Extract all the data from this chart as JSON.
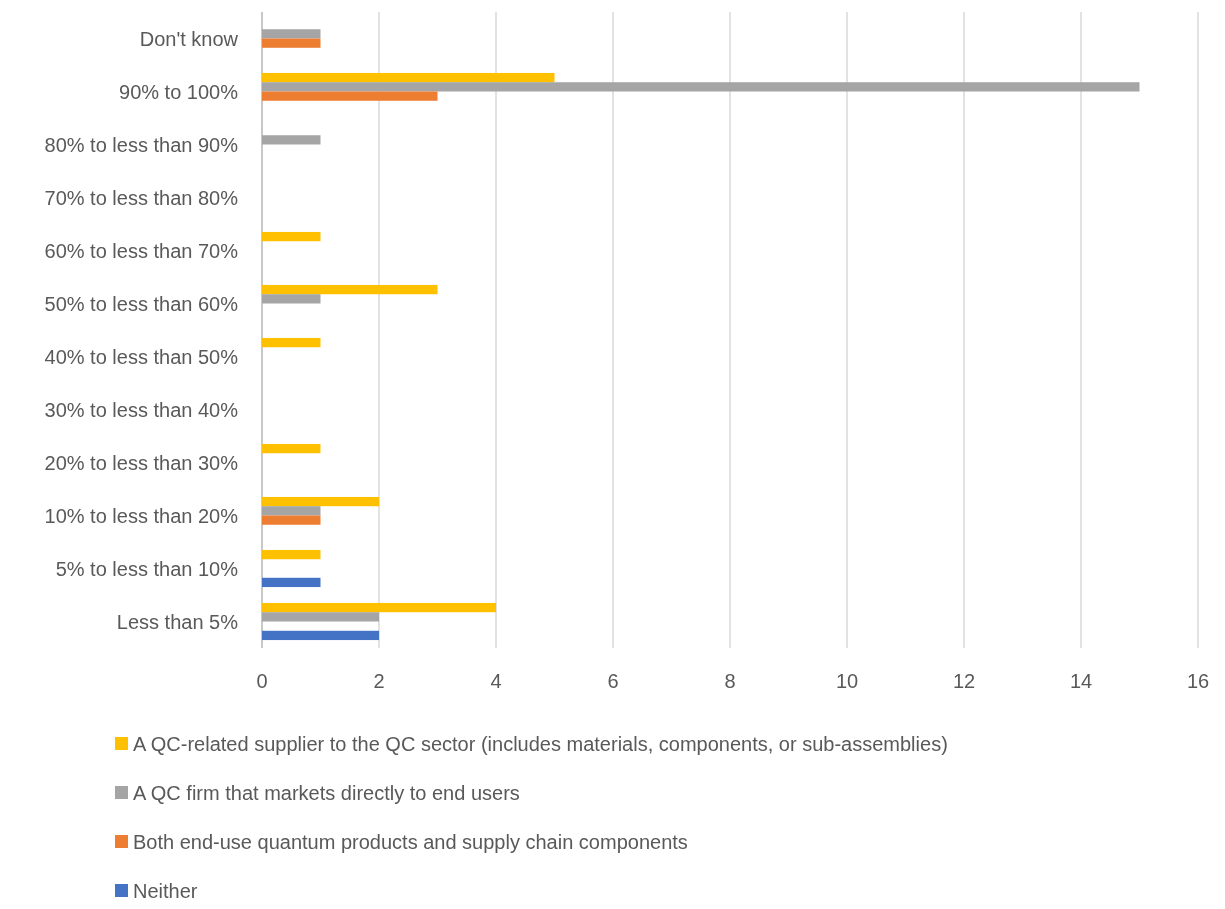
{
  "chart_data": {
    "type": "bar",
    "orientation": "horizontal",
    "categories": [
      "Don't know",
      "90% to 100%",
      "80% to less than 90%",
      "70% to less than 80%",
      "60% to less than 70%",
      "50% to less than 60%",
      "40% to less than 50%",
      "30% to less than 40%",
      "20% to less than 30%",
      "10% to less than 20%",
      "5% to less than 10%",
      "Less than 5%"
    ],
    "series": [
      {
        "name": "A QC-related supplier to the QC sector (includes materials, components, or sub-assemblies)",
        "color": "#ffc000",
        "values": [
          0,
          5,
          0,
          0,
          1,
          3,
          1,
          0,
          1,
          2,
          1,
          4
        ]
      },
      {
        "name": "A QC firm that markets directly to end users",
        "color": "#a5a5a5",
        "values": [
          1,
          15,
          1,
          0,
          0,
          1,
          0,
          0,
          0,
          1,
          0,
          2
        ]
      },
      {
        "name": "Both end-use quantum products and supply chain components",
        "color": "#ed7d31",
        "values": [
          1,
          3,
          0,
          0,
          0,
          0,
          0,
          0,
          0,
          1,
          0,
          0
        ]
      },
      {
        "name": "Neither",
        "color": "#4472c4",
        "values": [
          0,
          0,
          0,
          0,
          0,
          0,
          0,
          0,
          0,
          0,
          1,
          2
        ]
      }
    ],
    "xlim": [
      0,
      16
    ],
    "xticks": [
      0,
      2,
      4,
      6,
      8,
      10,
      12,
      14,
      16
    ],
    "grid": "x",
    "legend": "bottom"
  }
}
